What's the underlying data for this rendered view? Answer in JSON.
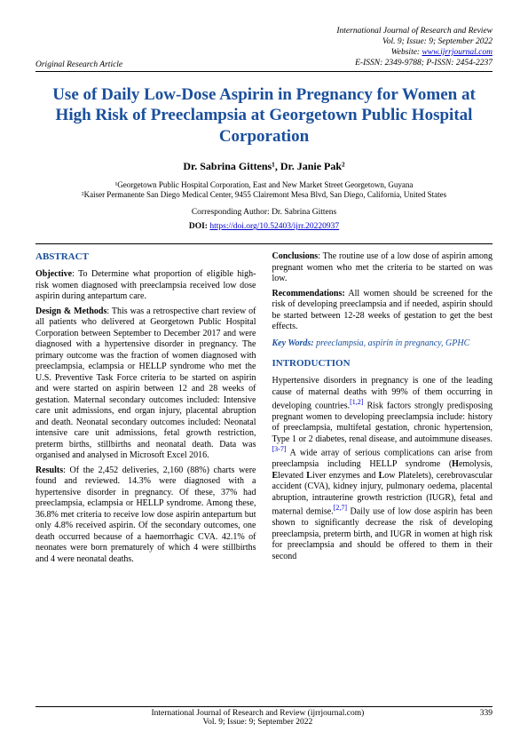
{
  "header": {
    "left": "Original Research Article",
    "journal": "International Journal of Research and Review",
    "issue": "Vol. 9; Issue: 9; September 2022",
    "website_label": "Website:",
    "website_url": "www.ijrrjournal.com",
    "issn": "E-ISSN: 2349-9788; P-ISSN: 2454-2237"
  },
  "title": "Use of Daily Low-Dose Aspirin in Pregnancy for Women at High Risk of Preeclampsia at Georgetown Public Hospital Corporation",
  "authors": "Dr. Sabrina Gittens¹, Dr. Janie Pak²",
  "affil1": "¹Georgetown Public Hospital Corporation, East and New Market Street Georgetown, Guyana",
  "affil2": "²Kaiser Permanente San Diego Medical Center, 9455 Clairemont Mesa Blvd, San Diego, California, United States",
  "corresponding": "Corresponding Author: Dr. Sabrina Gittens",
  "doi_label": "DOI:",
  "doi_url": "https://doi.org/10.52403/ijrr.20220937",
  "abstract": {
    "heading": "ABSTRACT",
    "objective_label": "Objective",
    "objective": ": To Determine what proportion of eligible high-risk women diagnosed with preeclampsia received low dose aspirin during antepartum care.",
    "design_label": "Design & Methods",
    "design": ": This was a retrospective chart review of all patients who delivered at Georgetown Public Hospital Corporation between September to December 2017 and were diagnosed with a hypertensive disorder in pregnancy. The primary outcome was the fraction of women diagnosed with preeclampsia, eclampsia or HELLP syndrome who met the U.S. Preventive Task Force criteria to be started on aspirin and were started on aspirin between 12 and 28 weeks of gestation. Maternal secondary outcomes included: Intensive care unit admissions, end organ injury, placental abruption and death. Neonatal secondary outcomes included: Neonatal intensive care unit admissions, fetal growth restriction, preterm births, stillbirths and neonatal death. Data was organised and analysed in Microsoft Excel 2016.",
    "results_label": "Results",
    "results": ": Of the 2,452 deliveries, 2,160 (88%) charts were found and reviewed. 14.3% were diagnosed with a hypertensive disorder in pregnancy. Of these, 37% had preeclampsia, eclampsia or HELLP syndrome. Among these, 36.8% met criteria to receive low dose aspirin antepartum but only 4.8% received aspirin. Of the secondary outcomes, one death occurred because of a haemorrhagic CVA. 42.1% of neonates were born prematurely of which 4 were stillbirths and 4 were neonatal deaths.",
    "conclusions_label": "Conclusions",
    "conclusions": ": The routine use of a low dose of aspirin among pregnant women who met the criteria to be started on was low.",
    "recs_label": "Recommendations:",
    "recs": " All women should be screened for the risk of developing preeclampsia and if needed, aspirin should be started between 12-28 weeks of gestation to get the best effects.",
    "keywords_label": "Key Words:",
    "keywords": " preeclampsia, aspirin in pregnancy, GPHC"
  },
  "intro": {
    "heading": "INTRODUCTION",
    "p1a": "Hypertensive disorders in pregnancy is one of the leading cause of maternal deaths with 99% of them occurring in developing countries.",
    "c1": "[1,2]",
    "p1b": " Risk factors strongly predisposing pregnant women to developing preeclampsia include: history of preeclampsia, multifetal gestation, chronic hypertension, Type 1 or 2 diabetes, renal disease, and autoimmune diseases.",
    "c2": "[3-7]",
    "p1c": " A wide array of serious complications can arise from preeclampsia including HELLP syndrome (",
    "h": "H",
    "p1d": "emolysis, ",
    "e": "E",
    "p1e": "levated ",
    "l": "L",
    "p1f": "iver enzymes and ",
    "l2": "L",
    "p1g": "ow Platelets), cerebrovascular accident (CVA), kidney injury, pulmonary oedema, placental abruption, intrauterine growth restriction (IUGR), fetal and maternal demise.",
    "c3": "[2,7]",
    "p1h": " Daily use of low dose aspirin has been shown to significantly decrease the risk of developing preeclampsia, preterm birth, and IUGR in women at high risk for preeclampsia and should be offered to them in their second"
  },
  "footer": {
    "left": "International Journal of Research and Review (ijrrjournal.com)",
    "sub": "Vol. 9; Issue: 9; September 2022",
    "page": "339"
  }
}
